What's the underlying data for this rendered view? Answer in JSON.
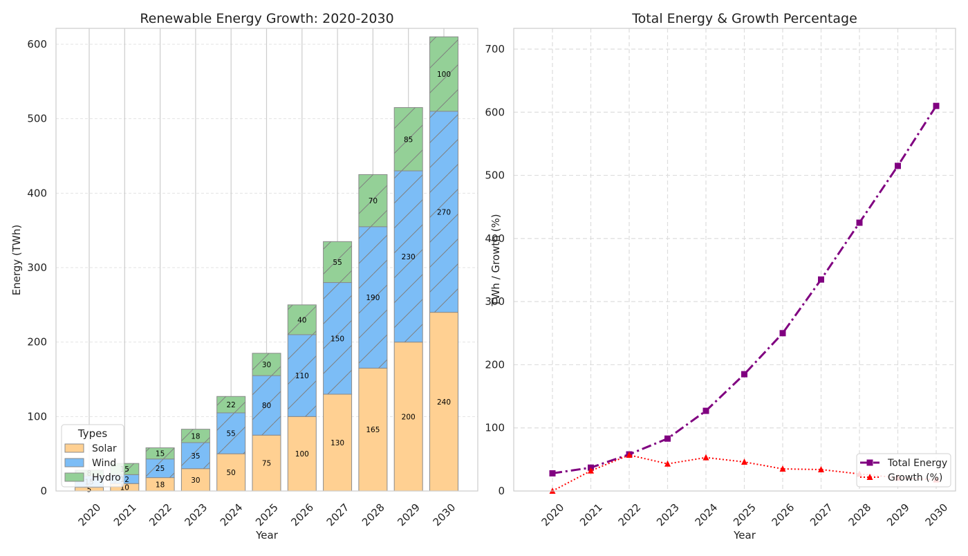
{
  "chart_data": [
    {
      "type": "bar",
      "stacked": true,
      "title": "Renewable Energy Growth: 2020-2030",
      "xlabel": "Year",
      "ylabel": "Energy (TWh)",
      "categories": [
        "2020",
        "2021",
        "2022",
        "2023",
        "2024",
        "2025",
        "2026",
        "2027",
        "2028",
        "2029",
        "2030"
      ],
      "ylim": [
        0,
        620
      ],
      "yticks": [
        0,
        100,
        200,
        300,
        400,
        500,
        600
      ],
      "series": [
        {
          "name": "Solar",
          "color": "#ffd092",
          "values": [
            5,
            10,
            18,
            30,
            50,
            75,
            100,
            130,
            165,
            200,
            240
          ]
        },
        {
          "name": "Wind",
          "color": "#7cbdf6",
          "values": [
            15,
            12,
            25,
            35,
            55,
            80,
            110,
            150,
            190,
            230,
            270
          ]
        },
        {
          "name": "Hydro",
          "color": "#94d097",
          "values": [
            8,
            15,
            15,
            18,
            22,
            30,
            40,
            55,
            70,
            85,
            100
          ]
        }
      ],
      "legend": {
        "title": "Types",
        "position": "lower-left"
      },
      "grid": true
    },
    {
      "type": "line",
      "title": "Total Energy & Growth Percentage",
      "xlabel": "Year",
      "ylabel": "TWh / Growth (%)",
      "x": [
        "2020",
        "2021",
        "2022",
        "2023",
        "2024",
        "2025",
        "2026",
        "2027",
        "2028",
        "2029",
        "2030"
      ],
      "ylim": [
        0,
        730
      ],
      "yticks": [
        0,
        100,
        200,
        300,
        400,
        500,
        600,
        700
      ],
      "series": [
        {
          "name": "Total Energy",
          "color": "#800080",
          "marker": "square",
          "linestyle": "dashdot",
          "values": [
            28,
            37,
            58,
            83,
            127,
            185,
            250,
            335,
            425,
            515,
            610
          ]
        },
        {
          "name": "Growth (%)",
          "color": "#ff0000",
          "marker": "triangle",
          "linestyle": "dotted",
          "values": [
            0,
            32,
            57,
            43,
            53,
            46,
            35,
            34,
            27,
            21,
            18
          ]
        }
      ],
      "legend": {
        "position": "lower-right"
      },
      "grid": true
    }
  ]
}
